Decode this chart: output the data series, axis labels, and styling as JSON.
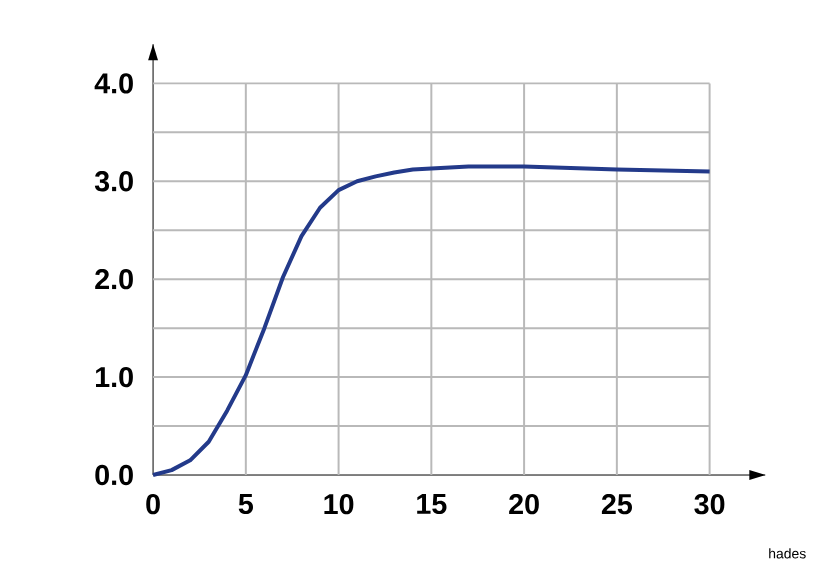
{
  "chart_data": {
    "type": "line",
    "x": [
      0,
      1,
      2,
      3,
      4,
      5,
      6,
      7,
      8,
      9,
      10,
      11,
      12,
      13,
      14,
      15,
      17,
      20,
      25,
      30
    ],
    "series": [
      {
        "color": "#233a8a",
        "values": [
          0,
          0.05,
          0.15,
          0.34,
          0.66,
          1.02,
          1.5,
          2.02,
          2.44,
          2.73,
          2.91,
          3.0,
          3.05,
          3.09,
          3.12,
          3.13,
          3.15,
          3.15,
          3.12,
          3.1
        ]
      }
    ],
    "xlim": [
      0,
      33
    ],
    "ylim": [
      0,
      4.4
    ],
    "xticks": [
      0,
      5,
      10,
      15,
      20,
      25,
      30
    ],
    "yticks": [
      {
        "value": 0,
        "label": "0.0"
      },
      {
        "value": 0.5,
        "label": null
      },
      {
        "value": 1,
        "label": "1.0"
      },
      {
        "value": 1.5,
        "label": null
      },
      {
        "value": 2,
        "label": "2.0"
      },
      {
        "value": 2.5,
        "label": null
      },
      {
        "value": 3,
        "label": "3.0"
      },
      {
        "value": 3.5,
        "label": null
      },
      {
        "value": 4,
        "label": "4.0"
      }
    ],
    "grid": true,
    "marker": "none",
    "line_style": "solid",
    "annotations": [
      "hades"
    ]
  }
}
